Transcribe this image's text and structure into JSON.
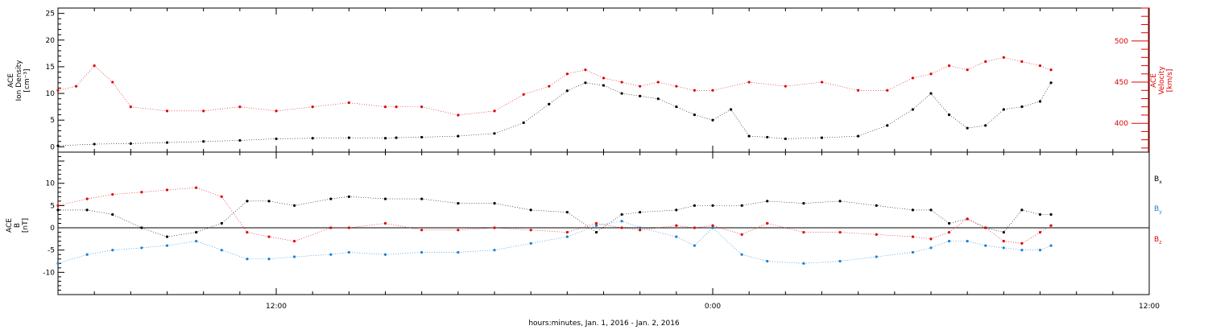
{
  "footer": {
    "xaxis_label": "hours:minutes, Jan.  1, 2016 - Jan.  2, 2016"
  },
  "colors": {
    "axis": "#000000",
    "density": "#000000",
    "velocity": "#e00000",
    "bx": "#000000",
    "by": "#1a7fd4",
    "bz": "#e00000"
  },
  "chart_data": [
    {
      "type": "scatter",
      "panel": "top",
      "ylabel": "ACE\nIon Density\n[cm⁻³]",
      "ylabel_lines": [
        "ACE",
        "Ion Density",
        "[cm⁻³]"
      ],
      "ylabel_right_lines": [
        "ACE",
        "Velocity",
        "[km/s]"
      ],
      "ylim": [
        -1,
        26
      ],
      "yticks": [
        0,
        5,
        10,
        15,
        20,
        25
      ],
      "ylim_right": [
        365,
        540
      ],
      "yticks_right": [
        400,
        450,
        500
      ],
      "x_unit": "hours since Jan. 1, 2016 00:00",
      "xlim": [
        6,
        36
      ],
      "xtick_labels": [
        "12:00",
        "0:00",
        "12:00"
      ],
      "xtick_values": [
        12,
        24,
        36
      ],
      "series": [
        {
          "name": "",
          "axis": "left",
          "color": "#000000",
          "x": [
            6.0,
            7.0,
            8.0,
            9.0,
            10.0,
            11.0,
            12.0,
            13.0,
            14.0,
            15.0,
            15.3,
            16.0,
            17.0,
            18.0,
            18.8,
            19.5,
            20.0,
            20.5,
            21.0,
            21.5,
            22.0,
            22.5,
            23.0,
            23.5,
            24.0,
            24.5,
            25.0,
            25.5,
            26.0,
            27.0,
            28.0,
            28.8,
            29.5,
            30.0,
            30.5,
            31.0,
            31.5,
            32.0,
            32.5,
            33.0,
            33.3
          ],
          "y": [
            0.2,
            0.5,
            0.6,
            0.8,
            1.0,
            1.2,
            1.5,
            1.6,
            1.7,
            1.6,
            1.7,
            1.8,
            2.0,
            2.5,
            4.5,
            8.0,
            10.5,
            12.0,
            11.5,
            10.0,
            9.5,
            9.0,
            7.5,
            6.0,
            5.0,
            7.0,
            2.0,
            1.8,
            1.5,
            1.7,
            2.0,
            4.0,
            7.0,
            10.0,
            6.0,
            3.5,
            4.0,
            7.0,
            7.5,
            8.5,
            12.0
          ]
        },
        {
          "name": "",
          "axis": "right",
          "color": "#e00000",
          "x": [
            6.0,
            6.5,
            7.0,
            7.5,
            8.0,
            9.0,
            10.0,
            11.0,
            12.0,
            13.0,
            14.0,
            15.0,
            15.3,
            16.0,
            17.0,
            18.0,
            18.8,
            19.5,
            20.0,
            20.5,
            21.0,
            21.5,
            22.0,
            22.5,
            23.0,
            23.5,
            24.0,
            25.0,
            26.0,
            27.0,
            28.0,
            28.8,
            29.5,
            30.0,
            30.5,
            31.0,
            31.5,
            32.0,
            32.5,
            33.0,
            33.3
          ],
          "y": [
            440,
            445,
            470,
            450,
            420,
            415,
            415,
            420,
            415,
            420,
            425,
            420,
            420,
            420,
            410,
            415,
            435,
            445,
            460,
            465,
            455,
            450,
            445,
            450,
            445,
            440,
            440,
            450,
            445,
            450,
            440,
            440,
            455,
            460,
            470,
            465,
            475,
            480,
            475,
            470,
            465
          ]
        }
      ]
    },
    {
      "type": "scatter",
      "panel": "bottom",
      "ylabel": "ACE\nB\n[nT]",
      "ylabel_lines": [
        "ACE",
        "B",
        "[nT]"
      ],
      "ylim": [
        -15,
        17
      ],
      "yticks": [
        -10,
        -5,
        0,
        5,
        10
      ],
      "zero_line": true,
      "x_unit": "hours since Jan. 1, 2016 00:00",
      "xlim": [
        6,
        36
      ],
      "xtick_labels": [
        "12:00",
        "0:00",
        "12:00"
      ],
      "xtick_values": [
        12,
        24,
        36
      ],
      "legend": [
        {
          "base": "B",
          "sub": "x",
          "color": "#000000"
        },
        {
          "base": "B",
          "sub": "y",
          "color": "#1a7fd4"
        },
        {
          "base": "B",
          "sub": "z",
          "color": "#e00000"
        }
      ],
      "series": [
        {
          "name": "Bx",
          "color": "#000000",
          "x": [
            6.0,
            6.8,
            7.5,
            8.3,
            9.0,
            9.8,
            10.5,
            11.2,
            11.8,
            12.5,
            13.5,
            14.0,
            15.0,
            16.0,
            17.0,
            18.0,
            19.0,
            20.0,
            20.8,
            21.5,
            22.0,
            23.0,
            23.5,
            24.0,
            24.8,
            25.5,
            26.5,
            27.5,
            28.5,
            29.5,
            30.0,
            30.5,
            31.0,
            31.5,
            32.0,
            32.5,
            33.0,
            33.3
          ],
          "y": [
            4.0,
            4.0,
            3.0,
            0.0,
            -2.0,
            -1.0,
            1.0,
            6.0,
            6.0,
            5.0,
            6.5,
            7.0,
            6.5,
            6.5,
            5.5,
            5.5,
            4.0,
            3.5,
            -1.0,
            3.0,
            3.5,
            4.0,
            5.0,
            5.0,
            5.0,
            6.0,
            5.5,
            6.0,
            5.0,
            4.0,
            4.0,
            1.0,
            2.0,
            0.0,
            -1.0,
            4.0,
            3.0,
            3.0
          ]
        },
        {
          "name": "By",
          "color": "#1a7fd4",
          "x": [
            6.0,
            6.8,
            7.5,
            8.3,
            9.0,
            9.8,
            10.5,
            11.2,
            11.8,
            12.5,
            13.5,
            14.0,
            15.0,
            16.0,
            17.0,
            18.0,
            19.0,
            20.0,
            20.8,
            21.5,
            22.0,
            23.0,
            23.5,
            24.0,
            24.8,
            25.5,
            26.5,
            27.5,
            28.5,
            29.5,
            30.0,
            30.5,
            31.0,
            31.5,
            32.0,
            32.5,
            33.0,
            33.3
          ],
          "y": [
            -8.0,
            -6.0,
            -5.0,
            -4.5,
            -4.0,
            -3.0,
            -5.0,
            -7.0,
            -7.0,
            -6.5,
            -6.0,
            -5.5,
            -6.0,
            -5.5,
            -5.5,
            -5.0,
            -3.5,
            -2.0,
            0.5,
            1.5,
            0.0,
            -2.0,
            -4.0,
            0.0,
            -6.0,
            -7.5,
            -8.0,
            -7.5,
            -6.5,
            -5.5,
            -4.5,
            -3.0,
            -3.0,
            -4.0,
            -4.5,
            -5.0,
            -5.0,
            -4.0
          ]
        },
        {
          "name": "Bz",
          "color": "#e00000",
          "x": [
            6.0,
            6.8,
            7.5,
            8.3,
            9.0,
            9.8,
            10.5,
            11.2,
            11.8,
            12.5,
            13.5,
            14.0,
            15.0,
            16.0,
            17.0,
            18.0,
            19.0,
            20.0,
            20.8,
            21.5,
            22.0,
            23.0,
            23.5,
            24.0,
            24.8,
            25.5,
            26.5,
            27.5,
            28.5,
            29.5,
            30.0,
            30.5,
            31.0,
            31.5,
            32.0,
            32.5,
            33.0,
            33.3
          ],
          "y": [
            5.0,
            6.5,
            7.5,
            8.0,
            8.5,
            9.0,
            7.0,
            -1.0,
            -2.0,
            -3.0,
            0.0,
            0.0,
            1.0,
            -0.5,
            -0.5,
            0.0,
            -0.5,
            -1.0,
            1.0,
            0.0,
            -0.5,
            0.5,
            0.0,
            0.5,
            -1.5,
            1.0,
            -1.0,
            -1.0,
            -1.5,
            -2.0,
            -2.5,
            -1.0,
            2.0,
            0.0,
            -3.0,
            -3.5,
            -1.0,
            0.5
          ]
        }
      ]
    }
  ]
}
